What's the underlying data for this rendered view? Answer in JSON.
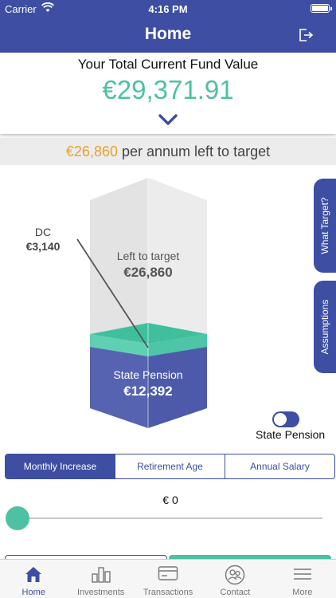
{
  "status_bar": {
    "carrier": "Carrier",
    "time": "4:16 PM"
  },
  "nav": {
    "title": "Home",
    "logout_icon": "logout-icon"
  },
  "fund": {
    "label": "Your Total Current Fund Value",
    "value": "€29,371.91"
  },
  "target_banner": {
    "amount": "€26,860",
    "text": " per annum left to target"
  },
  "graphic": {
    "left_to_target": {
      "label": "Left to target",
      "value": "€26,860"
    },
    "state_pension": {
      "label": "State Pension",
      "value": "€12,392"
    },
    "dc": {
      "label": "DC",
      "value": "€3,140"
    }
  },
  "side_tabs": {
    "what_target": "What Target?",
    "assumptions": "Assumptions"
  },
  "toggle": {
    "label": "State Pension",
    "on": true
  },
  "segments": [
    {
      "label": "Monthly Increase",
      "active": true
    },
    {
      "label": "Retirement Age",
      "active": false
    },
    {
      "label": "Annual Salary",
      "active": false
    }
  ],
  "slider": {
    "value_text": "€ 0",
    "fraction": 0
  },
  "tabs": [
    {
      "label": "Home",
      "icon": "home-icon",
      "active": true
    },
    {
      "label": "Investments",
      "icon": "investments-icon",
      "active": false
    },
    {
      "label": "Transactions",
      "icon": "transactions-icon",
      "active": false
    },
    {
      "label": "Contact",
      "icon": "contact-icon",
      "active": false
    },
    {
      "label": "More",
      "icon": "more-icon",
      "active": false
    }
  ],
  "colors": {
    "primary": "#3d4ea3",
    "accent": "#4cc1a3",
    "highlight": "#e8a22c"
  }
}
